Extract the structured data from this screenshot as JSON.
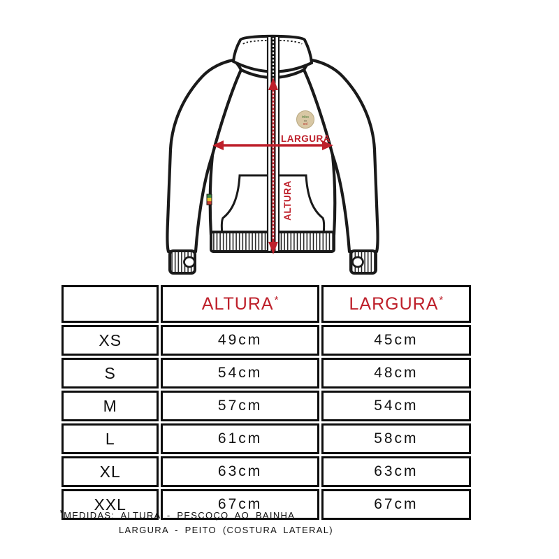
{
  "diagram": {
    "width_label": "LARGURA",
    "height_label": "ALTURA",
    "badge": {
      "top": "tribo",
      "mid": "do",
      "bot": "sol"
    }
  },
  "table": {
    "col_headers": [
      {
        "label": "ALTURA",
        "note": "*"
      },
      {
        "label": "LARGURA",
        "note": "*"
      }
    ],
    "rows": [
      {
        "size": "XS",
        "altura": "49cm",
        "largura": "45cm"
      },
      {
        "size": "S",
        "altura": "54cm",
        "largura": "48cm"
      },
      {
        "size": "M",
        "altura": "57cm",
        "largura": "54cm"
      },
      {
        "size": "L",
        "altura": "61cm",
        "largura": "58cm"
      },
      {
        "size": "XL",
        "altura": "63cm",
        "largura": "63cm"
      },
      {
        "size": "XXL",
        "altura": "67cm",
        "largura": "67cm"
      }
    ]
  },
  "footnote": {
    "symbol": "*",
    "line1": "MEDIDAS: ALTURA - PESCOÇO AO BAINHA",
    "line2": "LARGURA - PEITO (COSTURA LATERAL)"
  },
  "colors": {
    "accent_red": "#be202b",
    "outline": "#1a1a1a",
    "tag_green": "#3d8a40",
    "tag_yellow": "#e6c32e",
    "tag_red": "#c23b2e",
    "badge_bg": "#d8c7a4"
  }
}
